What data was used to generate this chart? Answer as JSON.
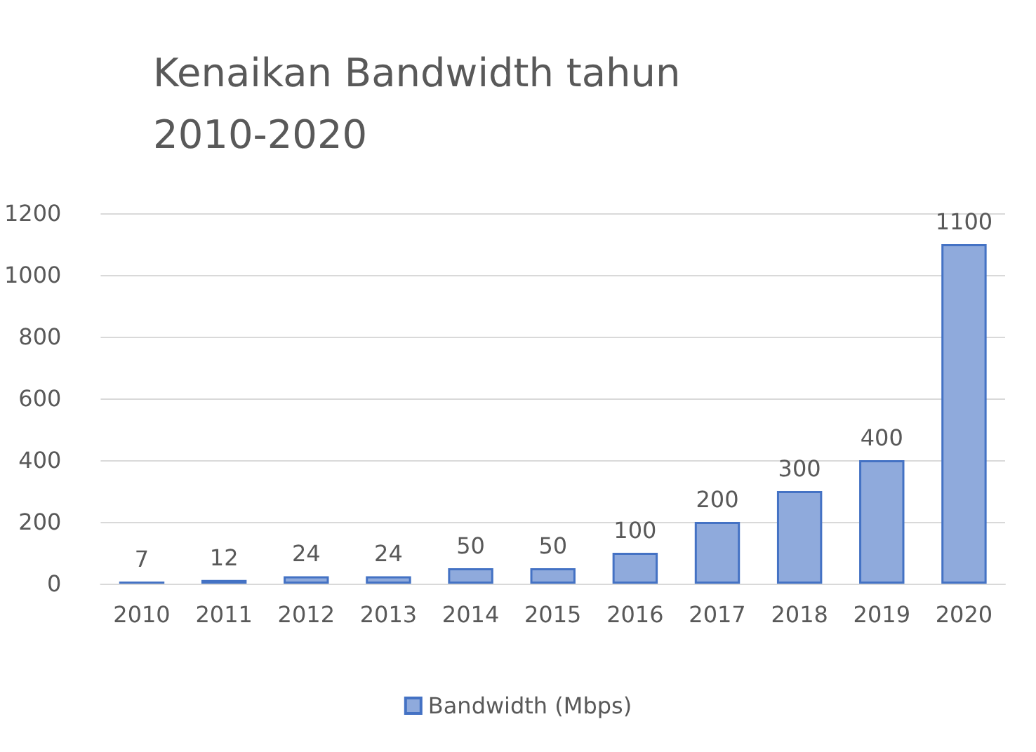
{
  "chart_data": {
    "type": "bar",
    "title": "Kenaikan Bandwidth tahun 2010-2020",
    "categories": [
      "2010",
      "2011",
      "2012",
      "2013",
      "2014",
      "2015",
      "2016",
      "2017",
      "2018",
      "2019",
      "2020"
    ],
    "series": [
      {
        "name": "Bandwidth (Mbps)",
        "color": "#8faadc",
        "values": [
          7,
          12,
          24,
          24,
          50,
          50,
          100,
          200,
          300,
          400,
          1100
        ]
      }
    ],
    "ylim": [
      0,
      1200
    ],
    "yticks": [
      0,
      200,
      400,
      600,
      800,
      1000,
      1200
    ],
    "grid": "y",
    "legend": "bottom",
    "data_labels": true
  }
}
